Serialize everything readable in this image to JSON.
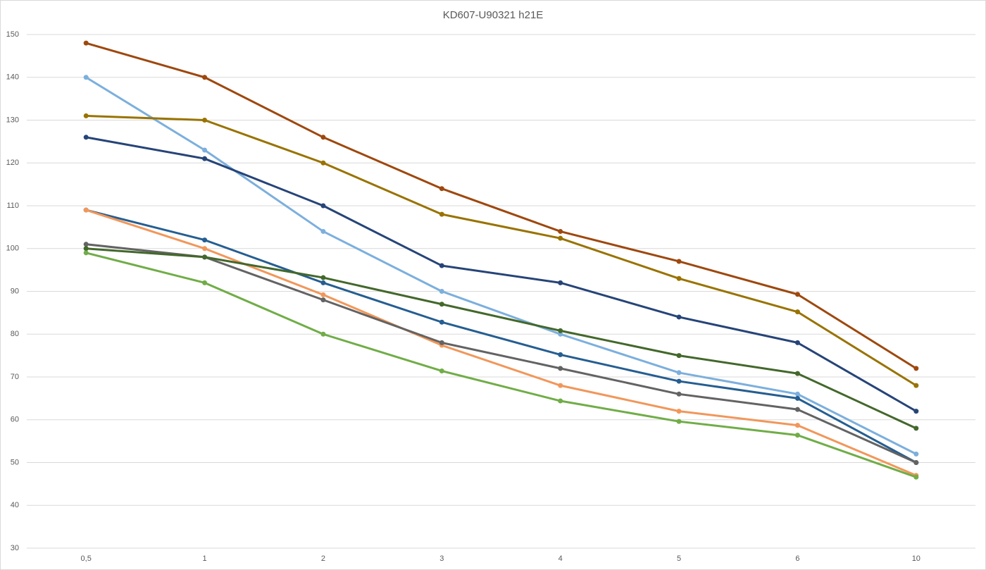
{
  "chart_data": {
    "type": "line",
    "title": "KD607-U90321 h21E",
    "categories": [
      "0,5",
      "1",
      "2",
      "3",
      "4",
      "5",
      "6",
      "10"
    ],
    "ylim": [
      30,
      150
    ],
    "yticks": [
      30,
      40,
      50,
      60,
      70,
      80,
      90,
      100,
      110,
      120,
      130,
      140,
      150
    ],
    "grid": true,
    "series": [
      {
        "color": "#9e480e",
        "values": [
          148,
          140,
          126,
          114,
          104,
          97,
          89.3,
          72
        ]
      },
      {
        "color": "#7cafdd",
        "values": [
          140,
          123,
          104,
          90,
          80,
          71,
          66,
          52
        ]
      },
      {
        "color": "#997300",
        "values": [
          131,
          130,
          120,
          108,
          102.4,
          93,
          85.2,
          68
        ]
      },
      {
        "color": "#264478",
        "values": [
          126,
          121,
          110,
          96,
          92,
          84,
          78,
          62
        ]
      },
      {
        "color": "#255e91",
        "values": [
          109,
          102,
          92,
          82.8,
          75.2,
          69,
          65,
          50
        ]
      },
      {
        "color": "#f1975a",
        "values": [
          109,
          100,
          89.2,
          77.4,
          68,
          62,
          58.7,
          47
        ]
      },
      {
        "color": "#636363",
        "values": [
          101,
          98,
          88,
          78,
          72,
          66,
          62.4,
          50
        ]
      },
      {
        "color": "#43682b",
        "values": [
          100,
          98,
          93.2,
          87,
          80.8,
          75,
          70.8,
          58
        ]
      },
      {
        "color": "#70ad47",
        "values": [
          99,
          92,
          80,
          71.4,
          64.4,
          59.6,
          56.4,
          46.6
        ]
      }
    ]
  }
}
